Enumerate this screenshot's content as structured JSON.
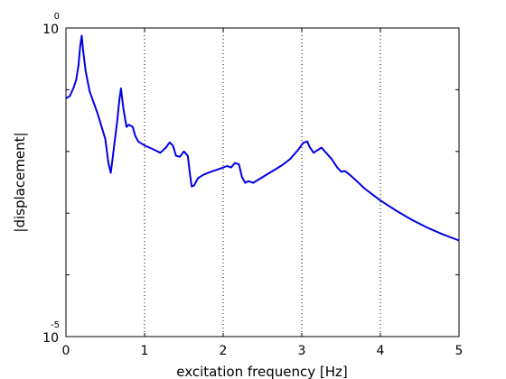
{
  "chart_data": {
    "type": "line",
    "xlabel": "excitation frequency [Hz]",
    "ylabel": "|displacement|",
    "xlim": [
      0,
      5
    ],
    "ylim": [
      1e-05,
      1
    ],
    "yscale": "log",
    "grid": "vertical dotted",
    "x_tick_labels": [
      "0",
      "1",
      "2",
      "3",
      "4",
      "5"
    ],
    "y_tick_labels": [
      {
        "base": "10",
        "exp": "0"
      },
      {
        "base": "10",
        "exp": "-5"
      }
    ],
    "series": [
      {
        "color": "#0000e6",
        "x": [
          0.0,
          0.05,
          0.1,
          0.13,
          0.16,
          0.18,
          0.2,
          0.22,
          0.25,
          0.3,
          0.4,
          0.5,
          0.54,
          0.57,
          0.6,
          0.65,
          0.68,
          0.7,
          0.73,
          0.77,
          0.8,
          0.85,
          0.88,
          0.92,
          1.0,
          1.1,
          1.2,
          1.27,
          1.32,
          1.36,
          1.4,
          1.45,
          1.5,
          1.55,
          1.58,
          1.6,
          1.63,
          1.68,
          1.75,
          1.85,
          1.95,
          2.05,
          2.1,
          2.15,
          2.2,
          2.24,
          2.28,
          2.32,
          2.38,
          2.45,
          2.55,
          2.65,
          2.75,
          2.85,
          2.95,
          3.02,
          3.07,
          3.1,
          3.15,
          3.2,
          3.25,
          3.3,
          3.38,
          3.45,
          3.5,
          3.55,
          3.6,
          3.7,
          3.8,
          3.9,
          4.0,
          4.2,
          4.4,
          4.6,
          4.8,
          5.0
        ],
        "y": [
          0.0724,
          0.079,
          0.11,
          0.145,
          0.25,
          0.5,
          0.75,
          0.42,
          0.2,
          0.095,
          0.042,
          0.016,
          0.0065,
          0.0045,
          0.009,
          0.03,
          0.07,
          0.105,
          0.05,
          0.025,
          0.027,
          0.025,
          0.018,
          0.0145,
          0.0125,
          0.011,
          0.0095,
          0.0115,
          0.014,
          0.0125,
          0.0085,
          0.0082,
          0.01,
          0.0085,
          0.004,
          0.0027,
          0.0028,
          0.0037,
          0.0042,
          0.0047,
          0.0052,
          0.0058,
          0.0055,
          0.0065,
          0.0062,
          0.0038,
          0.0031,
          0.0033,
          0.0031,
          0.0035,
          0.0042,
          0.005,
          0.006,
          0.0075,
          0.0105,
          0.0138,
          0.0145,
          0.0118,
          0.0095,
          0.0105,
          0.0115,
          0.0098,
          0.0075,
          0.0055,
          0.0047,
          0.0048,
          0.0043,
          0.0033,
          0.0025,
          0.002,
          0.0016,
          0.0011,
          0.00078,
          0.00058,
          0.00045,
          0.00036
        ]
      }
    ]
  }
}
